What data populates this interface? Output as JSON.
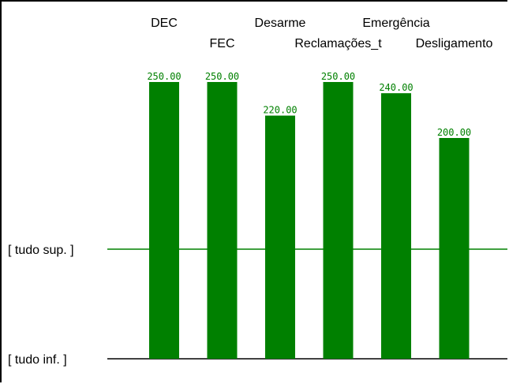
{
  "chart_data": {
    "type": "bar",
    "categories": [
      "DEC",
      "FEC",
      "Desarme",
      "Reclamações_t",
      "Emergência",
      "Desligamento"
    ],
    "values": [
      250.0,
      250.0,
      220.0,
      250.0,
      240.0,
      200.0
    ],
    "value_labels": [
      "250.00",
      "250.00",
      "220.00",
      "250.00",
      "240.00",
      "200.00"
    ],
    "reference_lines": [
      {
        "label": "[ tudo sup. ]",
        "color": "#008000"
      },
      {
        "label": "[ tudo inf. ]",
        "color": "#000000"
      }
    ],
    "bar_color": "#008000",
    "label_color": "#008000",
    "grid": false,
    "legend": "none"
  }
}
